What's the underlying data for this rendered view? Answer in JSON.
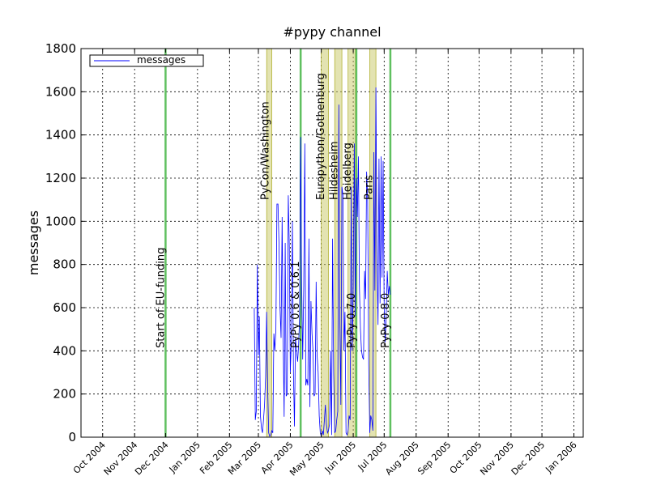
{
  "chart_data": {
    "type": "line",
    "title": "#pypy channel",
    "xlabel": "",
    "ylabel": "messages",
    "ylim": [
      0,
      1800
    ],
    "yticks": [
      0,
      200,
      400,
      600,
      800,
      1000,
      1200,
      1400,
      1600,
      1800
    ],
    "xlim": [
      "2004-09-10",
      "2006-01-10"
    ],
    "xticks": [
      {
        "date": "2004-10-01",
        "label": "Oct 2004"
      },
      {
        "date": "2004-11-01",
        "label": "Nov 2004"
      },
      {
        "date": "2004-12-01",
        "label": "Dec 2004"
      },
      {
        "date": "2005-01-01",
        "label": "Jan 2005"
      },
      {
        "date": "2005-02-01",
        "label": "Feb 2005"
      },
      {
        "date": "2005-03-01",
        "label": "Mar 2005"
      },
      {
        "date": "2005-04-01",
        "label": "Apr 2005"
      },
      {
        "date": "2005-05-01",
        "label": "May 2005"
      },
      {
        "date": "2005-06-01",
        "label": "Jun 2005"
      },
      {
        "date": "2005-07-01",
        "label": "Jul 2005"
      },
      {
        "date": "2005-08-01",
        "label": "Aug 2005"
      },
      {
        "date": "2005-09-01",
        "label": "Sep 2005"
      },
      {
        "date": "2005-10-01",
        "label": "Oct 2005"
      },
      {
        "date": "2005-11-01",
        "label": "Nov 2005"
      },
      {
        "date": "2005-12-01",
        "label": "Dec 2005"
      },
      {
        "date": "2006-01-01",
        "label": "Jan 2006"
      }
    ],
    "grid": true,
    "legend_position": "upper-left",
    "series": [
      {
        "name": "messages",
        "color": "#0000ff",
        "points": [
          [
            "2005-02-25",
            600
          ],
          [
            "2005-02-26",
            80
          ],
          [
            "2005-02-27",
            120
          ],
          [
            "2005-02-28",
            800
          ],
          [
            "2005-03-01",
            380
          ],
          [
            "2005-03-02",
            560
          ],
          [
            "2005-03-03",
            100
          ],
          [
            "2005-03-04",
            40
          ],
          [
            "2005-03-05",
            20
          ],
          [
            "2005-03-06",
            80
          ],
          [
            "2005-03-07",
            150
          ],
          [
            "2005-03-08",
            280
          ],
          [
            "2005-03-09",
            580
          ],
          [
            "2005-03-10",
            240
          ],
          [
            "2005-03-11",
            20
          ],
          [
            "2005-03-12",
            5
          ],
          [
            "2005-03-13",
            10
          ],
          [
            "2005-03-14",
            30
          ],
          [
            "2005-03-15",
            20
          ],
          [
            "2005-03-16",
            480
          ],
          [
            "2005-03-17",
            400
          ],
          [
            "2005-03-18",
            500
          ],
          [
            "2005-03-19",
            1080
          ],
          [
            "2005-03-20",
            1080
          ],
          [
            "2005-03-21",
            900
          ],
          [
            "2005-03-22",
            600
          ],
          [
            "2005-03-23",
            460
          ],
          [
            "2005-03-24",
            1020
          ],
          [
            "2005-03-25",
            480
          ],
          [
            "2005-03-26",
            95
          ],
          [
            "2005-03-27",
            900
          ],
          [
            "2005-03-28",
            190
          ],
          [
            "2005-03-29",
            200
          ],
          [
            "2005-03-30",
            1120
          ],
          [
            "2005-03-31",
            880
          ],
          [
            "2005-04-01",
            300
          ],
          [
            "2005-04-02",
            450
          ],
          [
            "2005-04-03",
            1000
          ],
          [
            "2005-04-04",
            300
          ],
          [
            "2005-04-05",
            50
          ],
          [
            "2005-04-06",
            460
          ],
          [
            "2005-04-07",
            400
          ],
          [
            "2005-04-08",
            350
          ],
          [
            "2005-04-09",
            420
          ],
          [
            "2005-04-10",
            560
          ],
          [
            "2005-04-11",
            1390
          ],
          [
            "2005-04-12",
            720
          ],
          [
            "2005-04-13",
            360
          ],
          [
            "2005-04-14",
            700
          ],
          [
            "2005-04-15",
            1360
          ],
          [
            "2005-04-16",
            240
          ],
          [
            "2005-04-17",
            270
          ],
          [
            "2005-04-18",
            240
          ],
          [
            "2005-04-19",
            920
          ],
          [
            "2005-04-20",
            140
          ],
          [
            "2005-04-21",
            630
          ],
          [
            "2005-04-22",
            480
          ],
          [
            "2005-04-23",
            400
          ],
          [
            "2005-04-24",
            190
          ],
          [
            "2005-04-25",
            200
          ],
          [
            "2005-04-26",
            720
          ],
          [
            "2005-04-27",
            380
          ],
          [
            "2005-04-28",
            300
          ],
          [
            "2005-04-29",
            100
          ],
          [
            "2005-04-30",
            20
          ],
          [
            "2005-05-01",
            5
          ],
          [
            "2005-05-02",
            30
          ],
          [
            "2005-05-03",
            10
          ],
          [
            "2005-05-04",
            80
          ],
          [
            "2005-05-05",
            150
          ],
          [
            "2005-05-06",
            60
          ],
          [
            "2005-05-07",
            20
          ],
          [
            "2005-05-08",
            30
          ],
          [
            "2005-05-09",
            60
          ],
          [
            "2005-05-10",
            400
          ],
          [
            "2005-05-11",
            10
          ],
          [
            "2005-05-12",
            920
          ],
          [
            "2005-05-13",
            300
          ],
          [
            "2005-05-14",
            20
          ],
          [
            "2005-05-15",
            30
          ],
          [
            "2005-05-16",
            80
          ],
          [
            "2005-05-17",
            120
          ],
          [
            "2005-05-18",
            1540
          ],
          [
            "2005-05-19",
            560
          ],
          [
            "2005-05-20",
            150
          ],
          [
            "2005-05-21",
            1160
          ],
          [
            "2005-05-22",
            1120
          ],
          [
            "2005-05-23",
            400
          ],
          [
            "2005-05-24",
            580
          ],
          [
            "2005-05-25",
            20
          ],
          [
            "2005-05-26",
            10
          ],
          [
            "2005-05-27",
            30
          ],
          [
            "2005-05-28",
            100
          ],
          [
            "2005-05-29",
            80
          ],
          [
            "2005-05-30",
            1160
          ],
          [
            "2005-05-31",
            400
          ],
          [
            "2005-06-01",
            700
          ],
          [
            "2005-06-02",
            1360
          ],
          [
            "2005-06-03",
            560
          ],
          [
            "2005-06-04",
            1200
          ],
          [
            "2005-06-05",
            1020
          ],
          [
            "2005-06-06",
            1300
          ],
          [
            "2005-06-07",
            700
          ],
          [
            "2005-06-08",
            500
          ],
          [
            "2005-06-09",
            400
          ],
          [
            "2005-06-10",
            370
          ],
          [
            "2005-06-11",
            360
          ],
          [
            "2005-06-12",
            770
          ],
          [
            "2005-06-13",
            640
          ],
          [
            "2005-06-14",
            1230
          ],
          [
            "2005-06-15",
            1100
          ],
          [
            "2005-06-16",
            340
          ],
          [
            "2005-06-17",
            20
          ],
          [
            "2005-06-18",
            100
          ],
          [
            "2005-06-19",
            80
          ],
          [
            "2005-06-20",
            30
          ],
          [
            "2005-06-21",
            1320
          ],
          [
            "2005-06-22",
            680
          ],
          [
            "2005-06-23",
            1620
          ],
          [
            "2005-06-24",
            820
          ],
          [
            "2005-06-25",
            520
          ],
          [
            "2005-06-26",
            1290
          ],
          [
            "2005-06-27",
            620
          ],
          [
            "2005-06-28",
            1300
          ],
          [
            "2005-06-29",
            740
          ],
          [
            "2005-06-30",
            1280
          ],
          [
            "2005-07-01",
            600
          ],
          [
            "2005-07-02",
            440
          ],
          [
            "2005-07-03",
            560
          ],
          [
            "2005-07-04",
            770
          ],
          [
            "2005-07-05",
            660
          ],
          [
            "2005-07-06",
            700
          ],
          [
            "2005-07-07",
            660
          ]
        ]
      }
    ],
    "vbands": [
      {
        "label": "PyCon/Washington",
        "start": "2005-03-09",
        "end": "2005-03-14",
        "color": "#c8c864"
      },
      {
        "label": "Europython/Gothenburg",
        "start": "2005-05-01",
        "end": "2005-05-08",
        "color": "#c8c864"
      },
      {
        "label": "Hildesheim",
        "start": "2005-05-14",
        "end": "2005-05-21",
        "color": "#c8c864"
      },
      {
        "label": "Heidelberg",
        "start": "2005-05-27",
        "end": "2005-06-03",
        "color": "#c8c864"
      },
      {
        "label": "Paris",
        "start": "2005-06-17",
        "end": "2005-06-23",
        "color": "#c8c864"
      }
    ],
    "vlines": [
      {
        "label": "Start of EU-funding",
        "date": "2004-12-01",
        "color": "#60c060"
      },
      {
        "label": "PyPy 0.6 & 0.6.1",
        "date": "2005-04-11",
        "color": "#60c060"
      },
      {
        "label": "PyPy 0.7.0",
        "date": "2005-06-04",
        "color": "#60c060"
      },
      {
        "label": "PyPy 0.8.0",
        "date": "2005-07-07",
        "color": "#60c060"
      }
    ]
  }
}
